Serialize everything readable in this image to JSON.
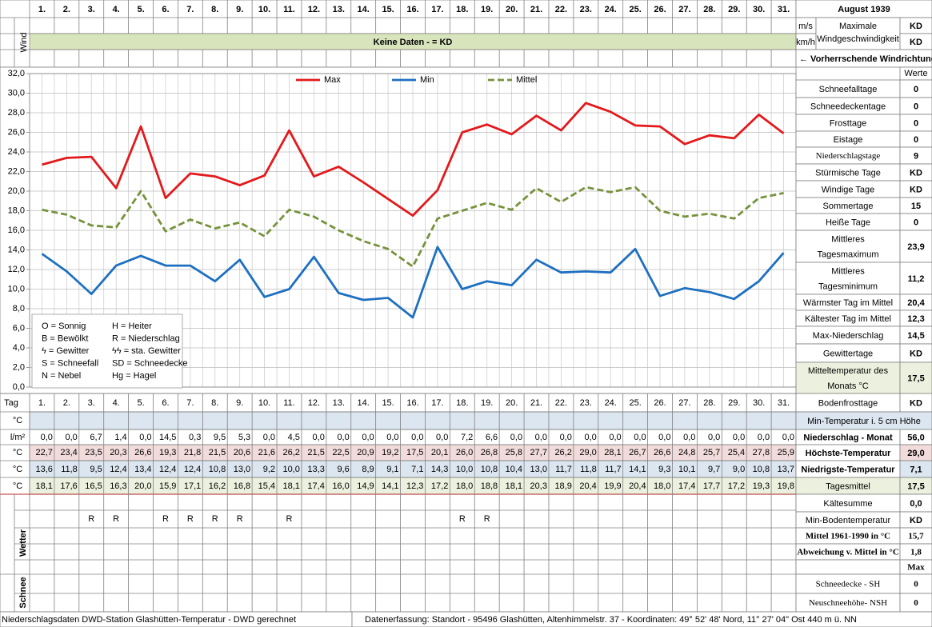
{
  "chart_data": {
    "type": "line",
    "categories": [
      "1.",
      "2.",
      "3.",
      "4.",
      "5.",
      "6.",
      "7.",
      "8.",
      "9.",
      "10.",
      "11.",
      "12.",
      "13.",
      "14.",
      "15.",
      "16.",
      "17.",
      "18.",
      "19.",
      "20.",
      "21.",
      "22.",
      "23.",
      "24.",
      "25.",
      "26.",
      "27.",
      "28.",
      "29.",
      "30.",
      "31."
    ],
    "series": [
      {
        "name": "Max",
        "color": "#e3191c",
        "line_style": "solid",
        "values": [
          22.7,
          23.4,
          23.5,
          20.3,
          26.6,
          19.3,
          21.8,
          21.5,
          20.6,
          21.6,
          26.2,
          21.5,
          22.5,
          20.9,
          19.2,
          17.5,
          20.1,
          26.0,
          26.8,
          25.8,
          27.7,
          26.2,
          29.0,
          28.1,
          26.7,
          26.6,
          24.8,
          25.7,
          25.4,
          27.8,
          25.9
        ],
        "value_labels": [
          "22,7",
          "23,4",
          "23,5",
          "20,3",
          "26,6",
          "19,3",
          "21,8",
          "21,5",
          "20,6",
          "21,6",
          "26,2",
          "21,5",
          "22,5",
          "20,9",
          "19,2",
          "17,5",
          "20,1",
          "26,0",
          "26,8",
          "25,8",
          "27,7",
          "26,2",
          "29,0",
          "28,1",
          "26,7",
          "26,6",
          "24,8",
          "25,7",
          "25,4",
          "27,8",
          "25,9"
        ]
      },
      {
        "name": "Min",
        "color": "#1f70c1",
        "line_style": "solid",
        "values": [
          13.6,
          11.8,
          9.5,
          12.4,
          13.4,
          12.4,
          12.4,
          10.8,
          13.0,
          9.2,
          10.0,
          13.3,
          9.6,
          8.9,
          9.1,
          7.1,
          14.3,
          10.0,
          10.8,
          10.4,
          13.0,
          11.7,
          11.8,
          11.7,
          14.1,
          9.3,
          10.1,
          9.7,
          9.0,
          10.8,
          13.7
        ],
        "value_labels": [
          "13,6",
          "11,8",
          "9,5",
          "12,4",
          "13,4",
          "12,4",
          "12,4",
          "10,8",
          "13,0",
          "9,2",
          "10,0",
          "13,3",
          "9,6",
          "8,9",
          "9,1",
          "7,1",
          "14,3",
          "10,0",
          "10,8",
          "10,4",
          "13,0",
          "11,7",
          "11,8",
          "11,7",
          "14,1",
          "9,3",
          "10,1",
          "9,7",
          "9,0",
          "10,8",
          "13,7"
        ]
      },
      {
        "name": "Mittel",
        "color": "#76923c",
        "line_style": "dashed",
        "values": [
          18.1,
          17.6,
          16.5,
          16.3,
          20.0,
          15.9,
          17.1,
          16.2,
          16.8,
          15.4,
          18.1,
          17.4,
          16.0,
          14.9,
          14.1,
          12.3,
          17.2,
          18.0,
          18.8,
          18.1,
          20.3,
          18.9,
          20.4,
          19.9,
          20.4,
          18.0,
          17.4,
          17.7,
          17.2,
          19.3,
          19.8
        ],
        "value_labels": [
          "18,1",
          "17,6",
          "16,5",
          "16,3",
          "20,0",
          "15,9",
          "17,1",
          "16,2",
          "16,8",
          "15,4",
          "18,1",
          "17,4",
          "16,0",
          "14,9",
          "14,1",
          "12,3",
          "17,2",
          "18,0",
          "18,8",
          "18,1",
          "20,3",
          "18,9",
          "20,4",
          "19,9",
          "20,4",
          "18,0",
          "17,4",
          "17,7",
          "17,2",
          "19,3",
          "19,8"
        ]
      }
    ],
    "ylim": [
      0,
      32
    ],
    "yticks": [
      {
        "value": 0,
        "label": "0,0"
      },
      {
        "value": 2,
        "label": "2,0"
      },
      {
        "value": 4,
        "label": "4,0"
      },
      {
        "value": 6,
        "label": "6,0"
      },
      {
        "value": 8,
        "label": "8,0"
      },
      {
        "value": 10,
        "label": "10,0"
      },
      {
        "value": 12,
        "label": "12,0"
      },
      {
        "value": 14,
        "label": "14,0"
      },
      {
        "value": 16,
        "label": "16,0"
      },
      {
        "value": 18,
        "label": "18,0"
      },
      {
        "value": 20,
        "label": "20,0"
      },
      {
        "value": 22,
        "label": "22,0"
      },
      {
        "value": 24,
        "label": "24,0"
      },
      {
        "value": 26,
        "label": "26,0"
      },
      {
        "value": 28,
        "label": "28,0"
      },
      {
        "value": 30,
        "label": "30,0"
      },
      {
        "value": 32,
        "label": "32,0"
      }
    ],
    "grid": true,
    "legend": "top"
  },
  "month": "August 1939",
  "wind": {
    "side_label": "Wind",
    "unit_ms": "m/s",
    "unit_kmh": "km/h",
    "label": [
      "Maximale",
      "Windgeschwindigkeit"
    ],
    "value_ms": "KD",
    "value_kmh": "KD",
    "banner": "Keine Daten -  = KD",
    "direction": "← Vorherrschende Windrichtung"
  },
  "weather_key": [
    "O = Sonnig",
    "H = Heiter",
    "B = Bewölkt",
    "R = Niederschlag",
    "ϟ = Gewitter",
    "ϟϟ = sta. Gewitter",
    "S = Schneefall",
    "SD = Schneedecke",
    "N = Nebel",
    "Hg = Hagel"
  ],
  "table": {
    "day_label": "Tag",
    "row_units": [
      "°C",
      "l/m²",
      "°C",
      "°C",
      "°C"
    ],
    "precipitation": [
      "0,0",
      "0,0",
      "6,7",
      "1,4",
      "0,0",
      "14,5",
      "0,3",
      "9,5",
      "5,3",
      "0,0",
      "4,5",
      "0,0",
      "0,0",
      "0,0",
      "0,0",
      "0,0",
      "0,0",
      "7,2",
      "6,6",
      "0,0",
      "0,0",
      "0,0",
      "0,0",
      "0,0",
      "0,0",
      "0,0",
      "0,0",
      "0,0",
      "0,0",
      "0,0",
      "0,0"
    ],
    "weather_label": "Wetter",
    "weather": [
      null,
      null,
      "R",
      "R",
      null,
      "R",
      "R",
      "R",
      "R",
      null,
      "R",
      null,
      null,
      null,
      null,
      null,
      null,
      "R",
      "R",
      null,
      null,
      null,
      null,
      null,
      null,
      null,
      null,
      null,
      null,
      null,
      null
    ],
    "snow_label": "Schnee"
  },
  "summary_header": "Werte",
  "summary": [
    {
      "label": [
        "Schneefalltage"
      ],
      "value": "0"
    },
    {
      "label": [
        "Schneedeckentage"
      ],
      "value": "0"
    },
    {
      "label": [
        "Frosttage"
      ],
      "value": "0"
    },
    {
      "label": [
        "Eistage"
      ],
      "value": "0"
    },
    {
      "label": [
        "Niederschlagstage"
      ],
      "value": "9"
    },
    {
      "label": [
        "Stürmische Tage"
      ],
      "value": "KD"
    },
    {
      "label": [
        "Windige Tage"
      ],
      "value": "KD"
    },
    {
      "label": [
        "Sommertage"
      ],
      "value": "15"
    },
    {
      "label": [
        "Heiße Tage"
      ],
      "value": "0"
    },
    {
      "label": [
        "Mittleres",
        "Tagesmaximum"
      ],
      "value": "23,9"
    },
    {
      "label": [
        "Mittleres",
        "Tagesminimum"
      ],
      "value": "11,2"
    },
    {
      "label": [
        "Wärmster Tag im Mittel"
      ],
      "value": "20,4"
    },
    {
      "label": [
        "Kältester Tag im Mittel"
      ],
      "value": "12,3"
    },
    {
      "label": [
        "Max-Niederschlag"
      ],
      "value": "14,5"
    },
    {
      "label": [
        "Gewittertage"
      ],
      "value": "KD"
    },
    {
      "label": [
        "Mitteltemperatur des",
        "Monats °C"
      ],
      "value": "17,5"
    },
    {
      "label": [
        "Bodenfrosttage"
      ],
      "value": "KD"
    },
    {
      "label": [
        "Min-Temperatur i. 5 cm Höhe"
      ]
    },
    {
      "label": [
        "Niederschlag - Monat"
      ],
      "value": "56,0"
    },
    {
      "label": [
        "Höchste-Temperatur"
      ],
      "value": "29,0"
    },
    {
      "label": [
        "Niedrigste-Temperatur"
      ],
      "value": "7,1"
    },
    {
      "label": [
        "Tagesmittel"
      ],
      "value": "17,5"
    },
    {
      "label": [
        "Kältesumme"
      ],
      "value": "0,0"
    },
    {
      "label": [
        "Min-Bodentemperatur"
      ],
      "value": "KD"
    },
    {
      "label": [
        "Mittel 1961-1990 in °C"
      ],
      "value": "15,7"
    },
    {
      "label": [
        "Abweichung v. Mittel in °C"
      ],
      "value": "1,8"
    },
    {
      "value": "Max"
    },
    {
      "label": [
        "Schneedecke -  SH"
      ],
      "value": "0"
    },
    {
      "label": [
        "Neuschneehöhe- NSH"
      ],
      "value": "0"
    }
  ],
  "footer": {
    "left": "Niederschlagsdaten DWD-Station Glashütten-Temperatur -  DWD gerechnet",
    "right": "Datenerfassung: Standort - 95496 Glashütten, Altenhimmelstr. 37 - Koordinaten: 49° 52' 48' Nord,  11° 27' 04\" Ost  440 m ü. NN"
  }
}
